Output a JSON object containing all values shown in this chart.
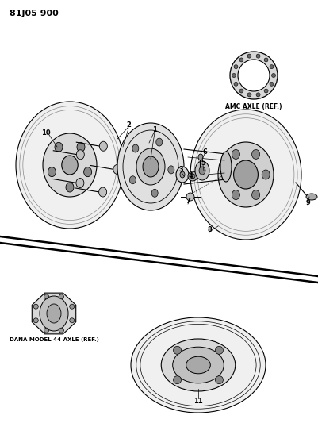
{
  "bg_color": "#ffffff",
  "title_text": "81J05 900",
  "title_fontsize": 8,
  "fig_width": 4.01,
  "fig_height": 5.33,
  "dpi": 100,
  "xlim": [
    0,
    401
  ],
  "ylim": [
    0,
    533
  ]
}
